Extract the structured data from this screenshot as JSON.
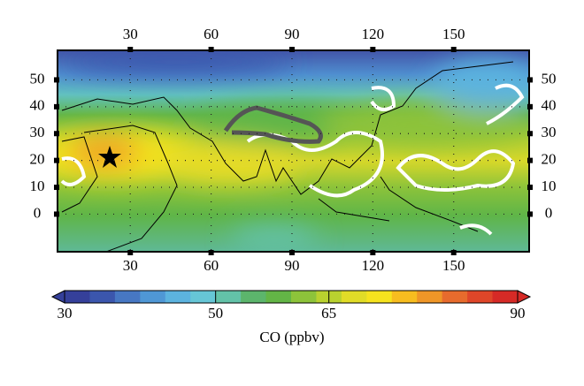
{
  "map": {
    "xlim": [
      3,
      178
    ],
    "ylim": [
      -14,
      61
    ],
    "xticks": [
      30,
      60,
      90,
      120,
      150
    ],
    "yticks": [
      0,
      10,
      20,
      30,
      40,
      50
    ],
    "grid": true
  },
  "colorbar": {
    "label": "CO (ppbv)",
    "lim": [
      30,
      90
    ],
    "ticks": [
      30,
      50,
      65,
      90
    ],
    "colors": [
      "#35409a",
      "#3b56ad",
      "#4777c3",
      "#4f97d5",
      "#5cb3df",
      "#66c6d6",
      "#63c2a8",
      "#5cb56c",
      "#63b546",
      "#8dc33a",
      "#b9d12f",
      "#e1dc27",
      "#f6e31e",
      "#f7bd1f",
      "#ef9627",
      "#e76b2d",
      "#df4629",
      "#d62a26"
    ]
  }
}
